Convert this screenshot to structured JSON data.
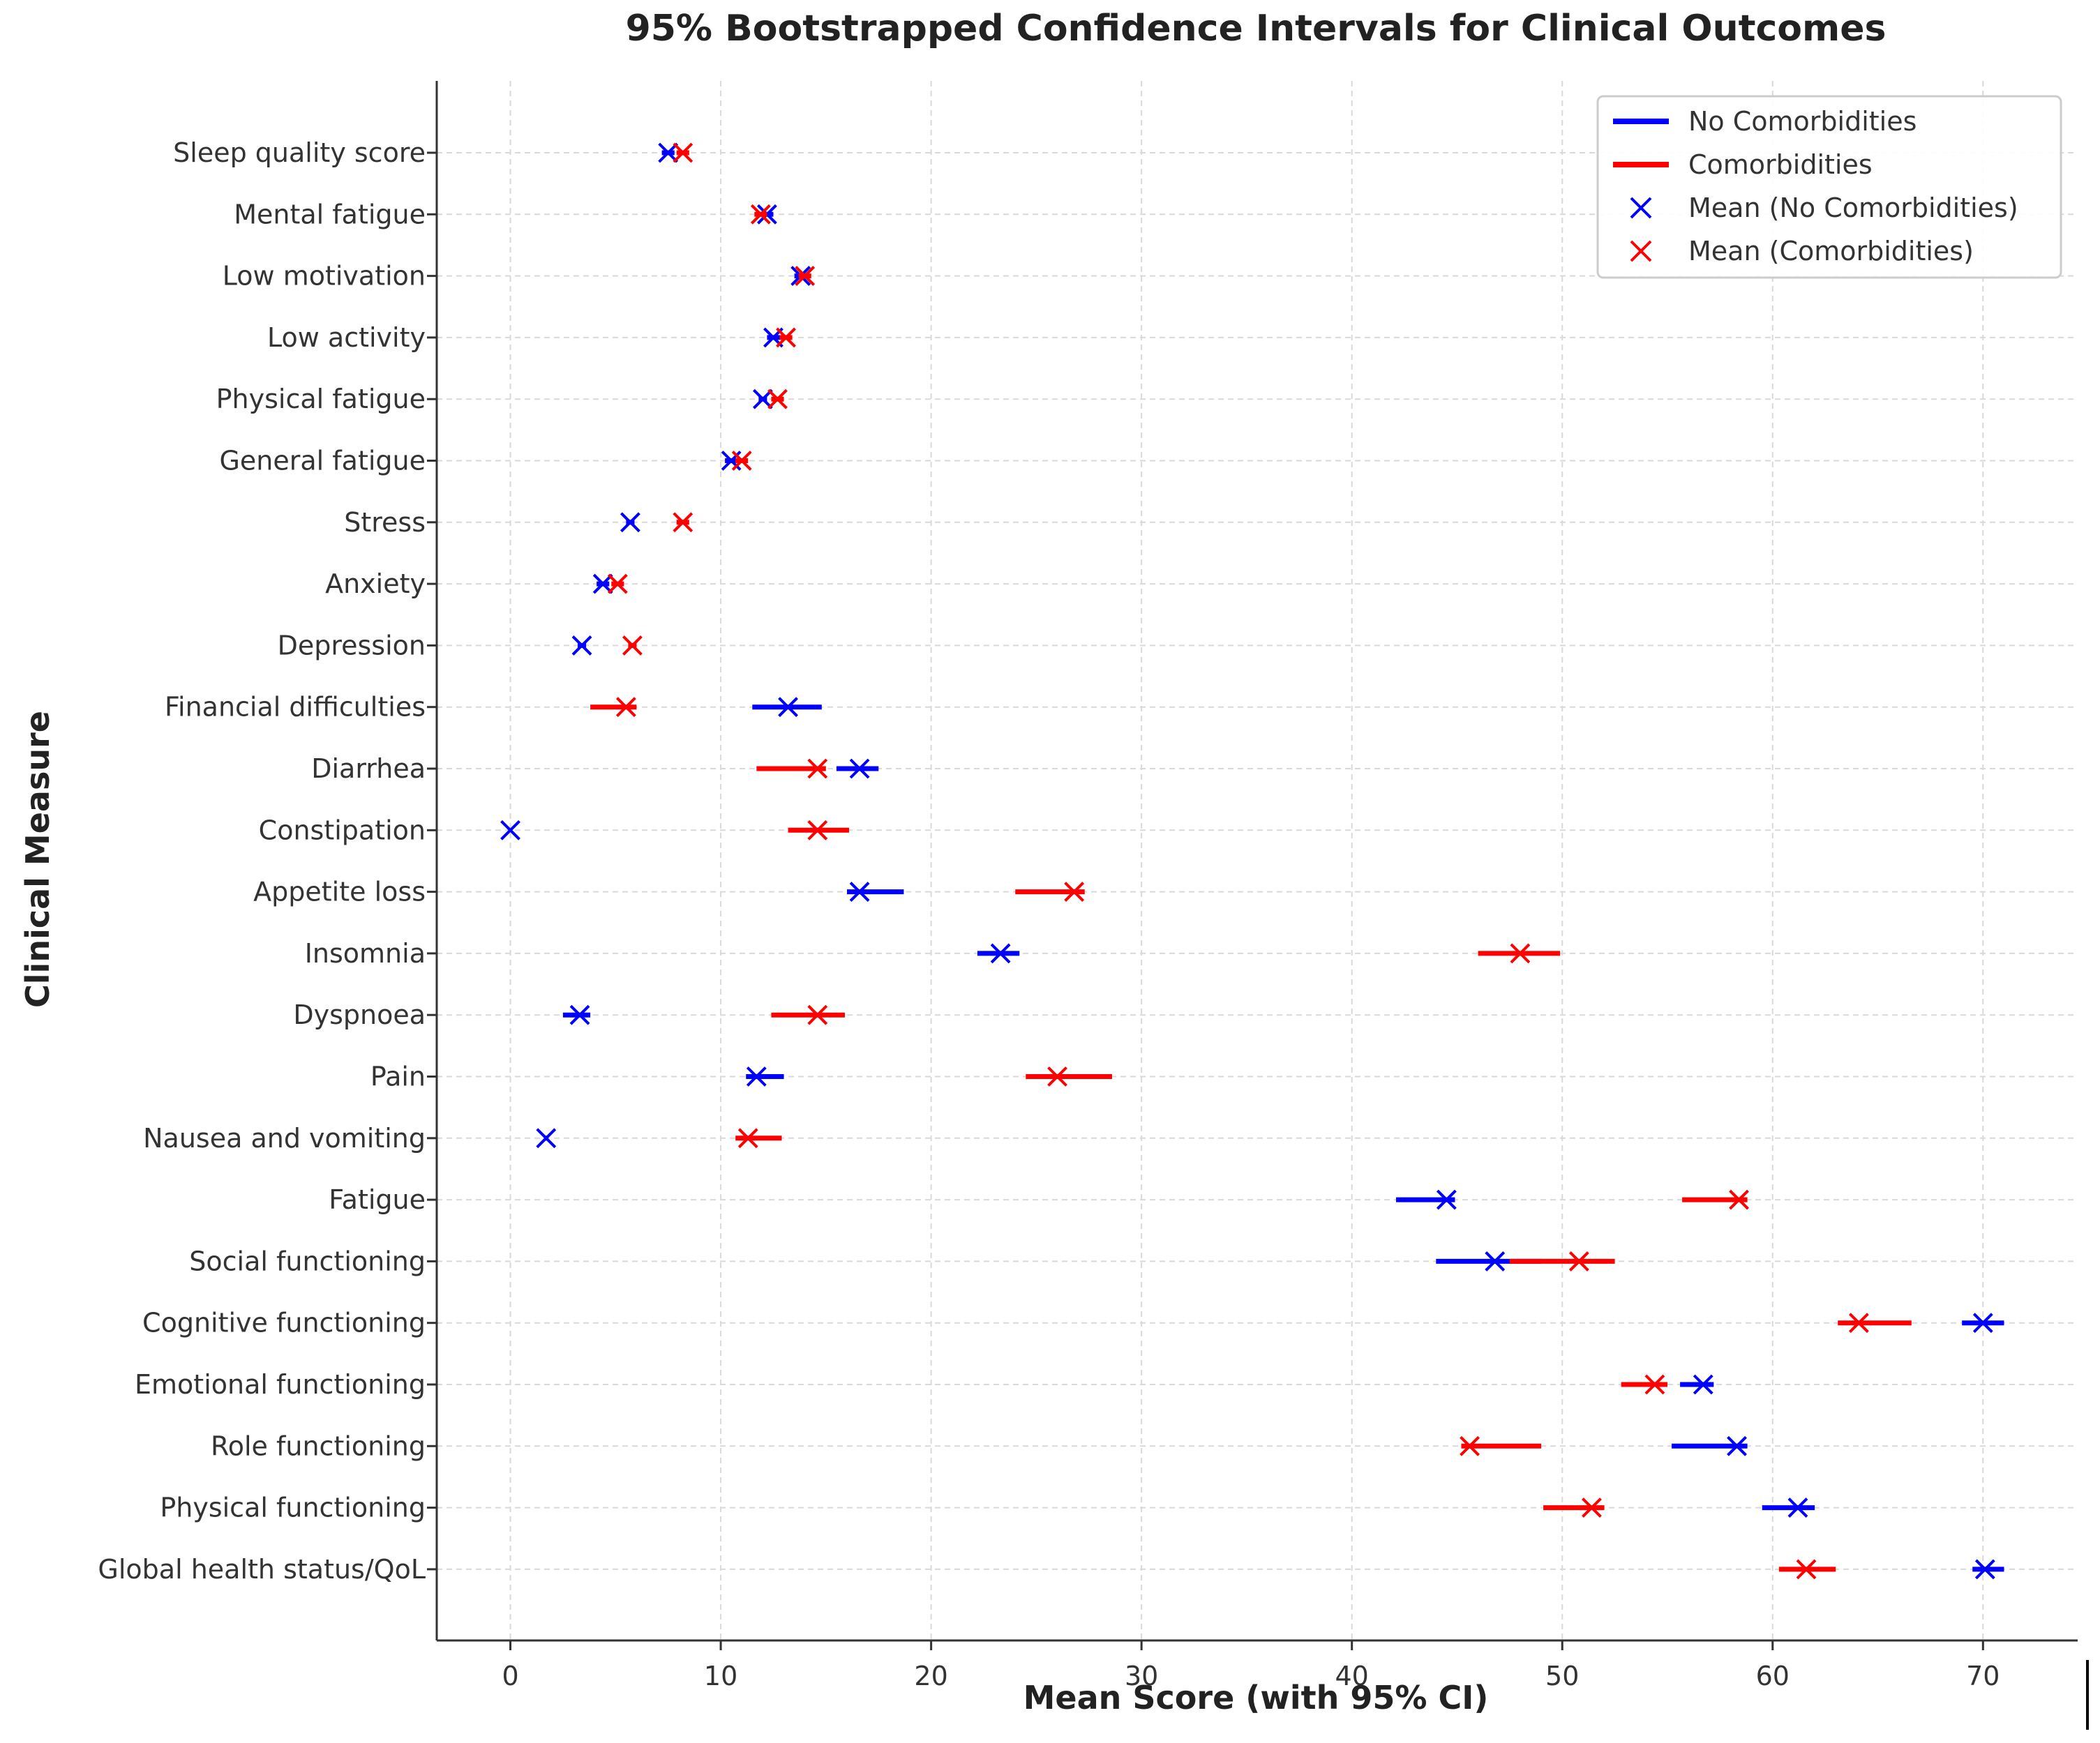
{
  "chart_data": {
    "type": "errorbar",
    "title": "95% Bootstrapped Confidence Intervals for Clinical Outcomes",
    "xlabel": "Mean Score (with 95% CI)",
    "ylabel": "Clinical Measure",
    "xlim": [
      -3.5,
      74.5
    ],
    "xticks": [
      0,
      10,
      20,
      30,
      40,
      50,
      60,
      70
    ],
    "grid": true,
    "legend_position": "top-right",
    "legend": [
      {
        "label": "No Comorbidities",
        "marker": "line",
        "color": "#0000ff"
      },
      {
        "label": "Comorbidities",
        "marker": "line",
        "color": "#ff0000"
      },
      {
        "label": "Mean (No Comorbidities)",
        "marker": "x",
        "color": "#0000ff"
      },
      {
        "label": "Mean (Comorbidities)",
        "marker": "x",
        "color": "#ff0000"
      }
    ],
    "colors": {
      "no_comorbidities": "#0000ff",
      "comorbidities": "#ff0000"
    },
    "categories": [
      "Sleep quality score",
      "Mental fatigue",
      "Low motivation",
      "Low activity",
      "Physical fatigue",
      "General fatigue",
      "Stress",
      "Anxiety",
      "Depression",
      "Financial difficulties",
      "Diarrhea",
      "Constipation",
      "Appetite loss",
      "Insomnia",
      "Dyspnoea",
      "Pain",
      "Nausea and vomiting",
      "Fatigue",
      "Social functioning",
      "Cognitive functioning",
      "Emotional functioning",
      "Role functioning",
      "Physical functioning",
      "Global health status/QoL"
    ],
    "series": [
      {
        "name": "No Comorbidities",
        "color": "#0000ff",
        "means": [
          7.5,
          12.2,
          13.8,
          12.5,
          12.0,
          10.5,
          5.7,
          4.4,
          3.4,
          13.2,
          16.6,
          0.0,
          16.6,
          23.3,
          3.3,
          11.7,
          1.7,
          44.5,
          46.8,
          70.0,
          56.7,
          58.3,
          61.2,
          70.1
        ],
        "low": [
          7.2,
          11.9,
          13.5,
          12.2,
          11.8,
          10.2,
          5.5,
          4.1,
          3.2,
          11.5,
          15.5,
          0.0,
          16.0,
          22.2,
          2.5,
          11.2,
          1.6,
          42.1,
          44.0,
          69.0,
          55.6,
          55.2,
          59.5,
          69.5
        ],
        "high": [
          7.8,
          12.5,
          14.1,
          12.8,
          12.2,
          10.8,
          5.9,
          4.7,
          3.6,
          14.8,
          17.5,
          0.0,
          18.7,
          24.2,
          3.8,
          13.0,
          1.8,
          44.9,
          49.0,
          71.0,
          57.2,
          58.8,
          62.0,
          71.0
        ],
        "marker": "x"
      },
      {
        "name": "Comorbidities",
        "color": "#ff0000",
        "means": [
          8.2,
          11.9,
          14.0,
          13.1,
          12.7,
          11.0,
          8.2,
          5.1,
          5.8,
          5.5,
          14.6,
          14.6,
          26.8,
          48.0,
          14.6,
          26.0,
          11.3,
          58.4,
          50.8,
          64.1,
          54.4,
          45.6,
          51.4,
          61.6
        ],
        "low": [
          7.9,
          11.6,
          13.7,
          12.8,
          12.4,
          10.7,
          7.9,
          4.8,
          5.6,
          3.8,
          11.7,
          13.2,
          24.0,
          46.0,
          12.4,
          24.5,
          10.7,
          55.7,
          47.5,
          63.1,
          52.8,
          45.2,
          49.1,
          60.3
        ],
        "high": [
          8.5,
          12.2,
          14.3,
          13.4,
          13.0,
          11.3,
          8.5,
          5.4,
          6.0,
          6.0,
          15.0,
          16.1,
          27.3,
          49.9,
          15.9,
          28.6,
          12.9,
          58.8,
          52.5,
          66.6,
          55.0,
          49.0,
          52.0,
          63.0
        ],
        "marker": "x"
      }
    ]
  }
}
